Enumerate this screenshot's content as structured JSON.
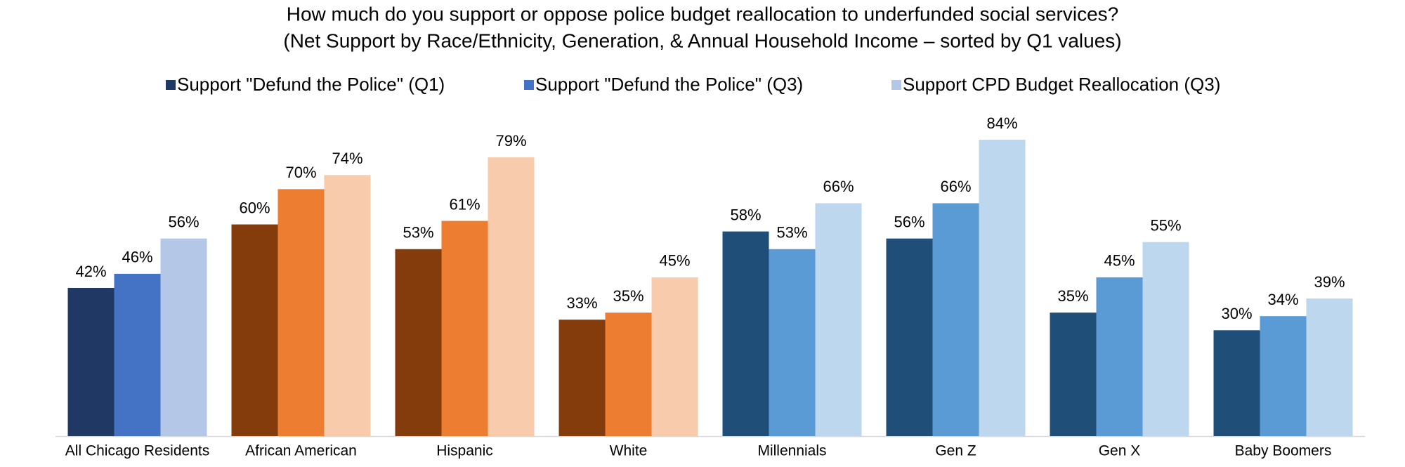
{
  "chart_data": {
    "type": "bar",
    "title": "How much do you support or oppose police budget reallocation to underfunded social services?",
    "subtitle": "(Net Support by Race/Ethnicity, Generation, & Annual Household Income – sorted by Q1 values)",
    "categories": [
      "All Chicago Residents",
      "African American",
      "Hispanic",
      "White",
      "Millennials",
      "Gen Z",
      "Gen X",
      "Baby Boomers"
    ],
    "series": [
      {
        "name": "Support \"Defund the Police\" (Q1)",
        "color": "#203864",
        "colors": [
          "#203864",
          "#843c0c",
          "#843c0c",
          "#843c0c",
          "#1f4e79",
          "#1f4e79",
          "#1f4e79",
          "#1f4e79"
        ],
        "values": [
          42,
          60,
          53,
          33,
          58,
          56,
          35,
          30
        ],
        "value_labels": [
          "42%",
          "60%",
          "53%",
          "33%",
          "58%",
          "56%",
          "35%",
          "30%"
        ]
      },
      {
        "name": "Support \"Defund the Police\" (Q3)",
        "color": "#4472c4",
        "colors": [
          "#4472c4",
          "#ed7d31",
          "#ed7d31",
          "#ed7d31",
          "#5b9bd5",
          "#5b9bd5",
          "#5b9bd5",
          "#5b9bd5"
        ],
        "values": [
          46,
          70,
          61,
          35,
          53,
          66,
          45,
          34
        ],
        "value_labels": [
          "46%",
          "70%",
          "61%",
          "35%",
          "53%",
          "66%",
          "45%",
          "34%"
        ]
      },
      {
        "name": "Support CPD Budget Reallocation (Q3)",
        "color": "#b4c7e7",
        "colors": [
          "#b4c7e7",
          "#f8cbad",
          "#f8cbad",
          "#f8cbad",
          "#bdd7ee",
          "#bdd7ee",
          "#bdd7ee",
          "#bdd7ee"
        ],
        "values": [
          56,
          74,
          79,
          45,
          66,
          84,
          55,
          39
        ],
        "value_labels": [
          "56%",
          "74%",
          "79%",
          "45%",
          "66%",
          "84%",
          "55%",
          "39%"
        ]
      }
    ]
  }
}
